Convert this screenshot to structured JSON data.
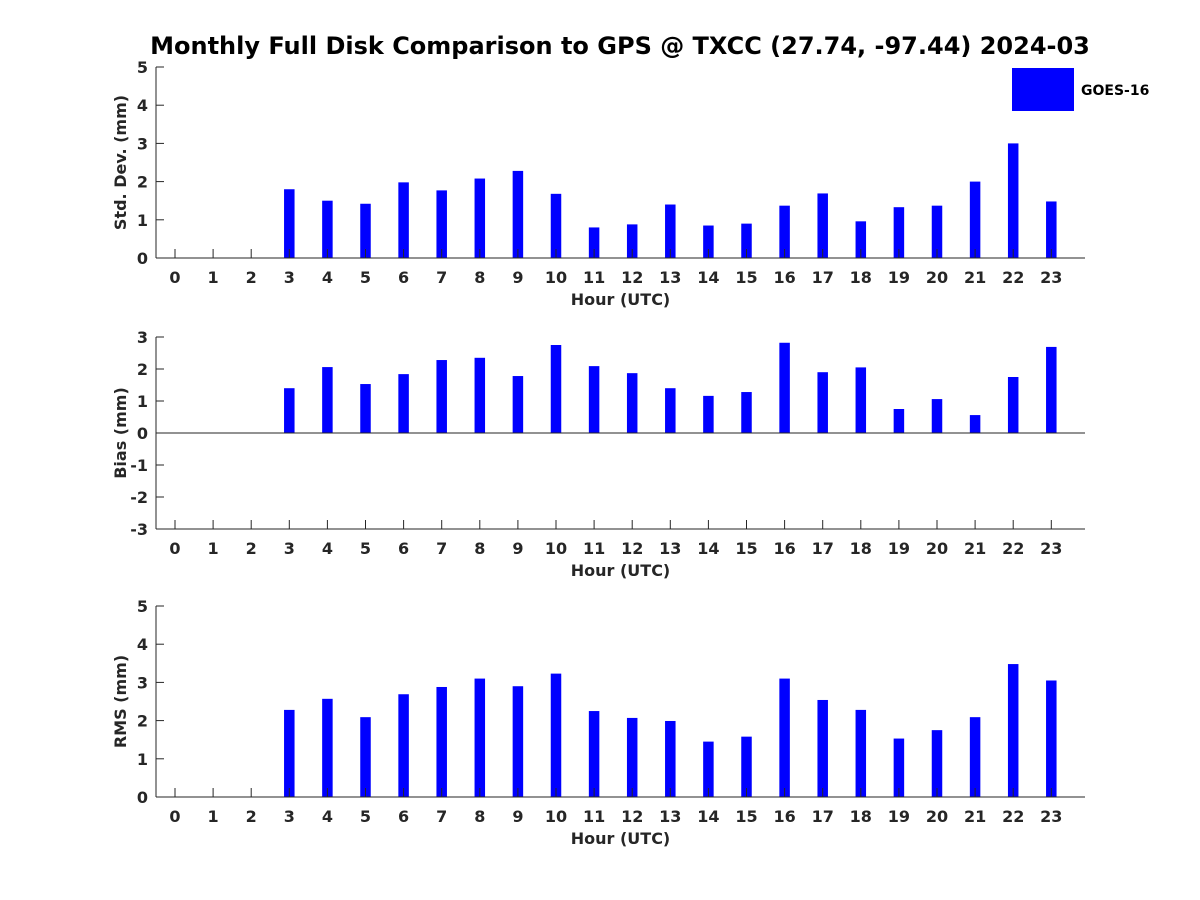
{
  "title": "Monthly Full Disk Comparison to GPS @ TXCC (27.74, -97.44) 2024-03",
  "legend": {
    "label": "GOES-16",
    "color": "#0000ff"
  },
  "bar_color": "#0000ff",
  "chart_data": [
    {
      "type": "bar",
      "name": "std",
      "xlabel": "Hour (UTC)",
      "ylabel": "Std. Dev. (mm)",
      "ylim": [
        0,
        5
      ],
      "yticks": [
        0,
        1,
        2,
        3,
        4,
        5
      ],
      "categories": [
        0,
        1,
        2,
        3,
        4,
        5,
        6,
        7,
        8,
        9,
        10,
        11,
        12,
        13,
        14,
        15,
        16,
        17,
        18,
        19,
        20,
        21,
        22,
        23
      ],
      "series": [
        {
          "name": "GOES-16",
          "values": [
            null,
            null,
            null,
            1.8,
            1.5,
            1.42,
            1.98,
            1.77,
            2.08,
            2.28,
            1.68,
            0.8,
            0.88,
            1.4,
            0.85,
            0.9,
            1.37,
            1.69,
            0.96,
            1.33,
            1.37,
            2.0,
            3.0,
            1.48
          ]
        }
      ]
    },
    {
      "type": "bar",
      "name": "bias",
      "xlabel": "Hour (UTC)",
      "ylabel": "Bias (mm)",
      "ylim": [
        -3,
        3
      ],
      "yticks": [
        -3,
        -2,
        -1,
        0,
        1,
        2,
        3
      ],
      "categories": [
        0,
        1,
        2,
        3,
        4,
        5,
        6,
        7,
        8,
        9,
        10,
        11,
        12,
        13,
        14,
        15,
        16,
        17,
        18,
        19,
        20,
        21,
        22,
        23
      ],
      "series": [
        {
          "name": "GOES-16",
          "values": [
            null,
            null,
            null,
            1.4,
            2.06,
            1.53,
            1.84,
            2.28,
            2.35,
            1.78,
            2.75,
            2.09,
            1.87,
            1.4,
            1.16,
            1.28,
            2.82,
            1.9,
            2.05,
            0.75,
            1.06,
            0.56,
            1.75,
            2.69
          ]
        }
      ]
    },
    {
      "type": "bar",
      "name": "rms",
      "xlabel": "Hour (UTC)",
      "ylabel": "RMS (mm)",
      "ylim": [
        0,
        5
      ],
      "yticks": [
        0,
        1,
        2,
        3,
        4,
        5
      ],
      "categories": [
        0,
        1,
        2,
        3,
        4,
        5,
        6,
        7,
        8,
        9,
        10,
        11,
        12,
        13,
        14,
        15,
        16,
        17,
        18,
        19,
        20,
        21,
        22,
        23
      ],
      "series": [
        {
          "name": "GOES-16",
          "values": [
            null,
            null,
            null,
            2.28,
            2.57,
            2.09,
            2.69,
            2.88,
            3.1,
            2.9,
            3.23,
            2.25,
            2.07,
            1.99,
            1.45,
            1.58,
            3.1,
            2.54,
            2.28,
            1.53,
            1.75,
            2.09,
            3.48,
            3.05
          ]
        }
      ]
    }
  ]
}
